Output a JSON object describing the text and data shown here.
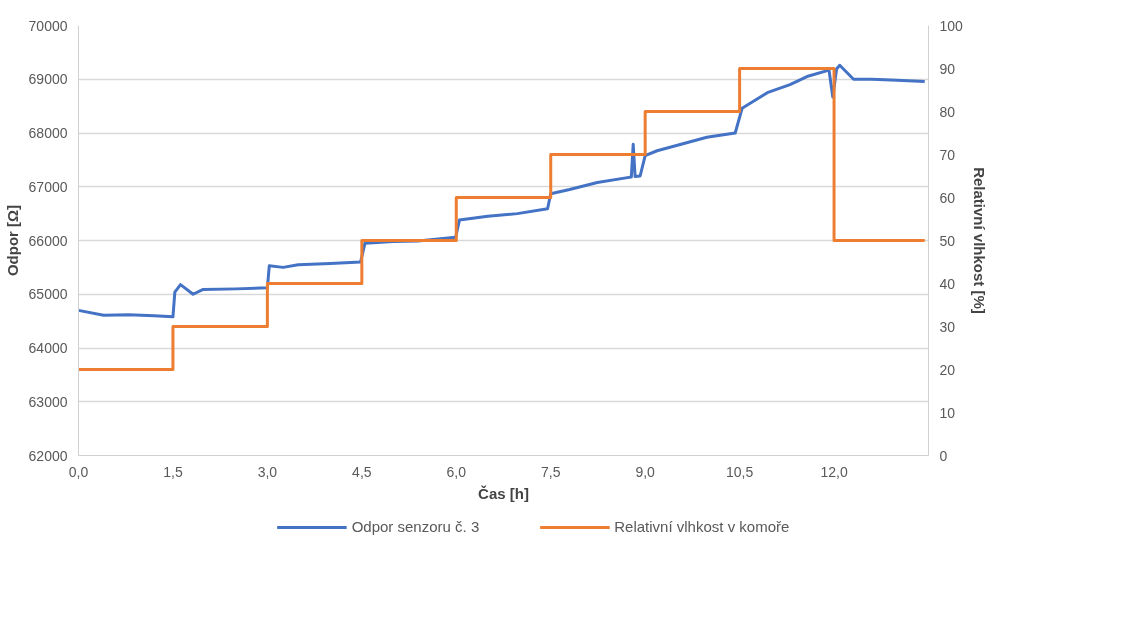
{
  "chart_data": {
    "type": "line",
    "xlabel": "Čas [h]",
    "ylabel": "Odpor [Ω]",
    "y2label": "Relativní vlhkost [%]",
    "xlim": [
      0,
      13.5
    ],
    "xticks": [
      {
        "value": 0,
        "label": "0,0"
      },
      {
        "value": 1.5,
        "label": "1,5"
      },
      {
        "value": 3,
        "label": "3,0"
      },
      {
        "value": 4.5,
        "label": "4,5"
      },
      {
        "value": 6,
        "label": "6,0"
      },
      {
        "value": 7.5,
        "label": "7,5"
      },
      {
        "value": 9,
        "label": "9,0"
      },
      {
        "value": 10.5,
        "label": "10,5"
      },
      {
        "value": 12,
        "label": "12,0"
      }
    ],
    "ylim": [
      62000,
      70000
    ],
    "yticks": [
      62000,
      63000,
      64000,
      65000,
      66000,
      67000,
      68000,
      69000,
      70000
    ],
    "y2lim": [
      0,
      100
    ],
    "y2ticks": [
      0,
      10,
      20,
      30,
      40,
      50,
      60,
      70,
      80,
      90,
      100
    ],
    "grid": "y",
    "legend": "bottom",
    "series": [
      {
        "name": "Odpor senzoru č. 3",
        "color": "#4472c4",
        "x": [
          0,
          0.4,
          0.8,
          1.2,
          1.5,
          1.53,
          1.62,
          1.82,
          1.98,
          2.5,
          3.0,
          3.03,
          3.25,
          3.49,
          4.0,
          4.48,
          4.55,
          5.0,
          5.39,
          5.99,
          6.05,
          6.5,
          6.97,
          7.45,
          7.5,
          7.8,
          8.24,
          8.72,
          8.78,
          8.81,
          8.84,
          8.92,
          9.0,
          9.19,
          9.6,
          9.98,
          10.43,
          10.54,
          10.94,
          11.3,
          11.57,
          11.92,
          11.98,
          12.04,
          12.09,
          12.31,
          12.6,
          13.0,
          13.44
        ],
        "values": [
          64700,
          64610,
          64620,
          64600,
          64580,
          65040,
          65180,
          65000,
          65090,
          65100,
          65120,
          65530,
          65500,
          65550,
          65570,
          65600,
          65950,
          65980,
          65990,
          66060,
          66380,
          66450,
          66500,
          66590,
          66870,
          66950,
          67080,
          67170,
          67180,
          67790,
          67190,
          67200,
          67580,
          67670,
          67800,
          67920,
          68000,
          68460,
          68750,
          68900,
          69050,
          69170,
          68670,
          69190,
          69260,
          69000,
          69000,
          68980,
          68960
        ]
      },
      {
        "name": "Relativní vlhkost v komoře",
        "color": "#ed7d31",
        "type": "step",
        "axis": "y2",
        "x": [
          0,
          1.5,
          3.0,
          4.5,
          6.0,
          7.5,
          9.0,
          10.5,
          12.0,
          13.44
        ],
        "values": [
          20,
          30,
          40,
          50,
          60,
          70,
          80,
          90,
          50,
          50
        ]
      }
    ]
  }
}
